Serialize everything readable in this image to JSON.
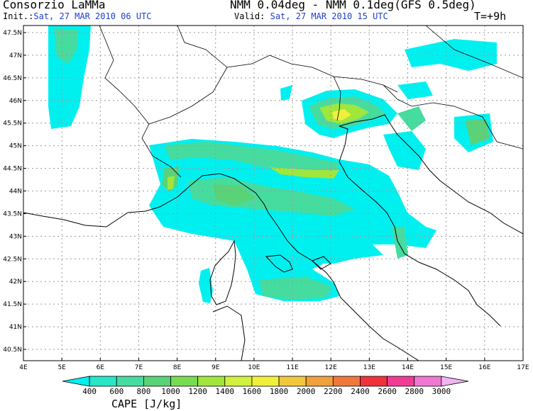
{
  "header": {
    "title_left": "Consorzio LaMMa",
    "init_label": "Init.:",
    "init_value": "Sat, 27 MAR 2010  06 UTC",
    "title_right": "NMM 0.04deg - NMM 0.1deg(GFS 0.5deg)",
    "valid_label": "Valid:",
    "valid_value": "Sat, 27 MAR 2010  15 UTC",
    "forecast_step": "T=+9h"
  },
  "map": {
    "lat_ticks": [
      "47.5N",
      "47N",
      "46.5N",
      "46N",
      "45.5N",
      "45N",
      "44.5N",
      "44N",
      "43.5N",
      "43N",
      "42.5N",
      "42N",
      "41.5N",
      "41N",
      "40.5N"
    ],
    "lon_ticks": [
      "4E",
      "5E",
      "6E",
      "7E",
      "8E",
      "9E",
      "10E",
      "11E",
      "12E",
      "13E",
      "14E",
      "15E",
      "16E",
      "17E"
    ]
  },
  "legend": {
    "title": "CAPE [J/kg]",
    "labels": [
      "400",
      "600",
      "800",
      "1000",
      "1200",
      "1400",
      "1600",
      "1800",
      "2000",
      "2200",
      "2400",
      "2600",
      "2800",
      "3000"
    ],
    "colors": [
      "#00f0f0",
      "#28e6c8",
      "#46dca0",
      "#5ad278",
      "#78dc50",
      "#a0e63c",
      "#d2f03c",
      "#f0f03c",
      "#f0c83c",
      "#f0a03c",
      "#f0783c",
      "#f0323c",
      "#f03c96",
      "#f078d2",
      "#f0b4f0"
    ]
  },
  "colors": {
    "cyan": "#00f0f0",
    "teal": "#46dca0",
    "green": "#5ad278",
    "light_green": "#a0e63c",
    "yellow": "#f0f03c",
    "coast": "#000000",
    "border": "#000000"
  }
}
